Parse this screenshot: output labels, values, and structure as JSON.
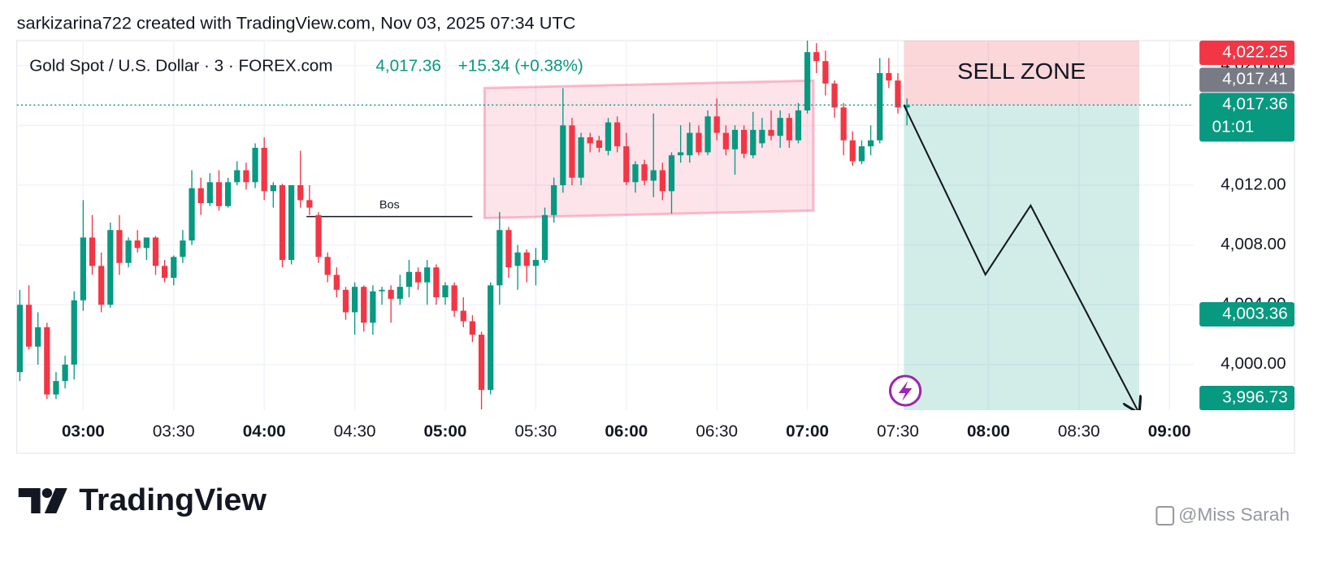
{
  "header": {
    "credit": "sarkizarina722 created with TradingView.com, Nov 03, 2025 07:34 UTC"
  },
  "footer": {
    "brand": "TradingView",
    "watermark": "@Miss Sarah"
  },
  "chart_data": {
    "type": "candlestick",
    "title": "Gold Spot / U.S. Dollar · 3 · FOREX.com",
    "last_price": "4,017.36",
    "change": "+15.34 (+0.38%)",
    "up_color": "#089981",
    "down_color": "#f23645",
    "x": [
      "02:39",
      "02:42",
      "02:45",
      "02:48",
      "02:51",
      "02:54",
      "02:57",
      "03:00",
      "03:03",
      "03:06",
      "03:09",
      "03:12",
      "03:15",
      "03:18",
      "03:21",
      "03:24",
      "03:27",
      "03:30",
      "03:33",
      "03:36",
      "03:39",
      "03:42",
      "03:45",
      "03:48",
      "03:51",
      "03:54",
      "03:57",
      "04:00",
      "04:03",
      "04:06",
      "04:09",
      "04:12",
      "04:15",
      "04:18",
      "04:21",
      "04:24",
      "04:27",
      "04:30",
      "04:33",
      "04:36",
      "04:39",
      "04:42",
      "04:45",
      "04:48",
      "04:51",
      "04:54",
      "04:57",
      "05:00",
      "05:03",
      "05:06",
      "05:09",
      "05:12",
      "05:15",
      "05:18",
      "05:21",
      "05:24",
      "05:27",
      "05:30",
      "05:33",
      "05:36",
      "05:39",
      "05:42",
      "05:45",
      "05:48",
      "05:51",
      "05:54",
      "05:57",
      "06:00",
      "06:03",
      "06:06",
      "06:09",
      "06:12",
      "06:15",
      "06:18",
      "06:21",
      "06:24",
      "06:27",
      "06:30",
      "06:33",
      "06:36",
      "06:39",
      "06:42",
      "06:45",
      "06:48",
      "06:51",
      "06:54",
      "06:57",
      "07:00",
      "07:03",
      "07:06",
      "07:09",
      "07:12",
      "07:15",
      "07:18",
      "07:21",
      "07:24",
      "07:27",
      "07:30",
      "07:33"
    ],
    "open": [
      3999.5,
      4004,
      4001.2,
      4002.5,
      3998,
      3998.9,
      4000,
      4004.3,
      4008.5,
      4006.6,
      4004,
      4009,
      4006.8,
      4008.3,
      4007.8,
      4008.5,
      4006.6,
      4005.8,
      4007.2,
      4008.3,
      4011.8,
      4010.8,
      4012.2,
      4010.6,
      4012.2,
      4013,
      4012.2,
      4014.5,
      4011.6,
      4012,
      4007,
      4012,
      4011,
      4010,
      4007.2,
      4006,
      4005,
      4003.5,
      4005.2,
      4002.8,
      4004.9,
      4005,
      4004.4,
      4005.2,
      4006.2,
      4005.5,
      4006.5,
      4004.5,
      4005.3,
      4003.6,
      4002.9,
      4002,
      3998.3,
      4005.3,
      4009,
      4006.6,
      4007.5,
      4006.6,
      4007,
      4010,
      4012,
      4016,
      4012.5,
      4015.2,
      4015,
      4014.3,
      4016.2,
      4014.6,
      4012.2,
      4013.4,
      4012.3,
      4013,
      4011.6,
      4014,
      4014,
      4015.5,
      4014.2,
      4016.6,
      4015.5,
      4014.4,
      4015.7,
      4014,
      4014.8,
      4015.7,
      4015.3,
      4016.5,
      4015,
      4017,
      4020.9,
      4020.3,
      4018.8,
      4017.2,
      4015,
      4013.6,
      4014.6,
      4015,
      4019.5,
      4019,
      4017.2
    ],
    "high": [
      4005,
      4005.3,
      4003.5,
      4002.8,
      3999.5,
      4000.6,
      4004.9,
      4011,
      4010,
      4007.5,
      4009.5,
      4010,
      4008.5,
      4009,
      4008.5,
      4008.6,
      4007,
      4007.3,
      4009,
      4013,
      4012.5,
      4012.8,
      4013,
      4012.5,
      4013.6,
      4013.5,
      4014.8,
      4015.2,
      4012.2,
      4012.1,
      4012,
      4014.3,
      4012,
      4010.2,
      4007.5,
      4006.5,
      4005.2,
      4005.5,
      4005.3,
      4005.3,
      4005.2,
      4005.3,
      4006,
      4007,
      4006.5,
      4007,
      4006.7,
      4005.5,
      4005.5,
      4004.5,
      4003.3,
      4002.2,
      4005.5,
      4010.2,
      4009.2,
      4008,
      4007.7,
      4007.8,
      4010.5,
      4012.5,
      4018.5,
      4016.5,
      4015.5,
      4015.5,
      4015.3,
      4016.5,
      4016.6,
      4015.5,
      4013.6,
      4013.7,
      4016.8,
      4013.5,
      4014.2,
      4016,
      4016.2,
      4016,
      4017,
      4017.8,
      4016,
      4016,
      4016,
      4016.9,
      4016.5,
      4017,
      4017,
      4016.8,
      4017.5,
      4022,
      4021.5,
      4021,
      4019,
      4017.5,
      4015.6,
      4015,
      4016,
      4020.5,
      4020.5,
      4019.5,
      4017.8
    ],
    "low": [
      3998.9,
      4001,
      4000,
      3997.7,
      3997.7,
      3998.4,
      3999,
      4003.6,
      4006,
      4003.5,
      4003.8,
      4006,
      4006.5,
      4007.5,
      4007,
      4006,
      4005.5,
      4005.3,
      4006.8,
      4008,
      4010,
      4010.6,
      4010.3,
      4010.5,
      4012,
      4011.7,
      4011.8,
      4011,
      4010.5,
      4006.5,
      4006.7,
      4010.5,
      4010,
      4006.8,
      4005.5,
      4004.5,
      4003,
      4002,
      4002.2,
      4002,
      4004,
      4002.8,
      4004,
      4004.5,
      4005,
      4004,
      4004,
      4004,
      4003.2,
      4002.5,
      4001.5,
      3997,
      3998,
      4004,
      4005.8,
      4005,
      4005.5,
      4005.3,
      4006.8,
      4009.5,
      4011.5,
      4012,
      4012,
      4014.2,
      4014.2,
      4014,
      4014.2,
      4012,
      4011.5,
      4012,
      4011.2,
      4011,
      4010.1,
      4013.5,
      4013.5,
      4014,
      4014,
      4015,
      4014,
      4012.7,
      4013.8,
      4013.8,
      4014.5,
      4015,
      4014.5,
      4014.5,
      4014.8,
      4016.8,
      4019.5,
      4018,
      4016.5,
      4014,
      4013.3,
      4013.4,
      4014,
      4014.8,
      4018.5,
      4016.8,
      4016
    ],
    "close": [
      4004,
      4001.2,
      4002.5,
      3998,
      3998.9,
      4000,
      4004.3,
      4008.5,
      4006.6,
      4004,
      4009,
      4006.8,
      4008.3,
      4007.8,
      4008.5,
      4006.6,
      4005.8,
      4007.2,
      4008.3,
      4011.8,
      4010.8,
      4012.2,
      4010.6,
      4012.2,
      4013,
      4012.2,
      4014.5,
      4011.6,
      4012,
      4007,
      4012,
      4011,
      4010.5,
      4007.2,
      4006,
      4005,
      4003.5,
      4005.2,
      4002.8,
      4004.9,
      4005,
      4004.4,
      4005.2,
      4006.2,
      4005.5,
      4006.5,
      4004.5,
      4005.3,
      4003.6,
      4002.9,
      4002,
      3998.3,
      4005.3,
      4009,
      4006.5,
      4007.5,
      4006.6,
      4007,
      4010,
      4012,
      4016,
      4012.5,
      4015.2,
      4014.8,
      4014.5,
      4016.2,
      4014.6,
      4012.2,
      4013.4,
      4012.3,
      4013,
      4011.6,
      4014,
      4014.2,
      4015.5,
      4014.2,
      4016.6,
      4015.5,
      4014.4,
      4015.7,
      4014.1,
      4015.7,
      4015.7,
      4015.3,
      4016.5,
      4015,
      4017,
      4020.9,
      4020.3,
      4018.8,
      4017.2,
      4015,
      4013.6,
      4014.6,
      4015,
      4019.5,
      4019,
      4017.2,
      4017.36
    ],
    "xlim": [
      "02:38",
      "09:08"
    ],
    "xticks": [
      "03:00",
      "03:30",
      "04:00",
      "04:30",
      "05:00",
      "05:30",
      "06:00",
      "06:30",
      "07:00",
      "07:30",
      "08:00",
      "08:30",
      "09:00"
    ],
    "ylim": [
      3996.95,
      4021.67
    ],
    "yticks": [
      {
        "value": 4000,
        "label": "4,000.00"
      },
      {
        "value": 4004,
        "label": "4,004.00"
      },
      {
        "value": 4008,
        "label": "4,008.00"
      },
      {
        "value": 4012,
        "label": "4,012.00"
      },
      {
        "value": 4016,
        "label": "4,016.00"
      },
      {
        "value": 4020,
        "label": "4,020.00"
      }
    ],
    "grid": true,
    "price_labels": [
      {
        "value": 4022.25,
        "label": "4,022.25",
        "color": "#f23645"
      },
      {
        "value": 4017.41,
        "label": "4,017.41",
        "color": "#787b86"
      },
      {
        "value": 4017.36,
        "label": "4,017.36",
        "countdown": "01:01",
        "color": "#089981"
      },
      {
        "value": 4003.36,
        "label": "4,003.36",
        "color": "#089981"
      },
      {
        "value": 3996.73,
        "label": "3,996.73",
        "color": "#089981"
      }
    ],
    "annotations": {
      "bos": {
        "text": "Bos",
        "price": 4009.9,
        "start": "04:14",
        "end": "05:09"
      },
      "range": {
        "start": "05:13",
        "end": "07:02",
        "top_start": 4018.5,
        "bottom_start": 4009.8,
        "top_end": 4019,
        "bottom_end": 4010.3
      },
      "position": {
        "label": "SELL ZONE",
        "start": "07:32",
        "end": "08:50",
        "stop": 4022.25,
        "entry": 4017.36,
        "target": 3996.73,
        "path": [
          {
            "time": "07:32",
            "price": 4017.36
          },
          {
            "time": "07:59",
            "price": 4006.02
          },
          {
            "time": "08:14",
            "price": 4010.64
          },
          {
            "time": "08:50",
            "price": 3996.73
          }
        ]
      }
    }
  }
}
